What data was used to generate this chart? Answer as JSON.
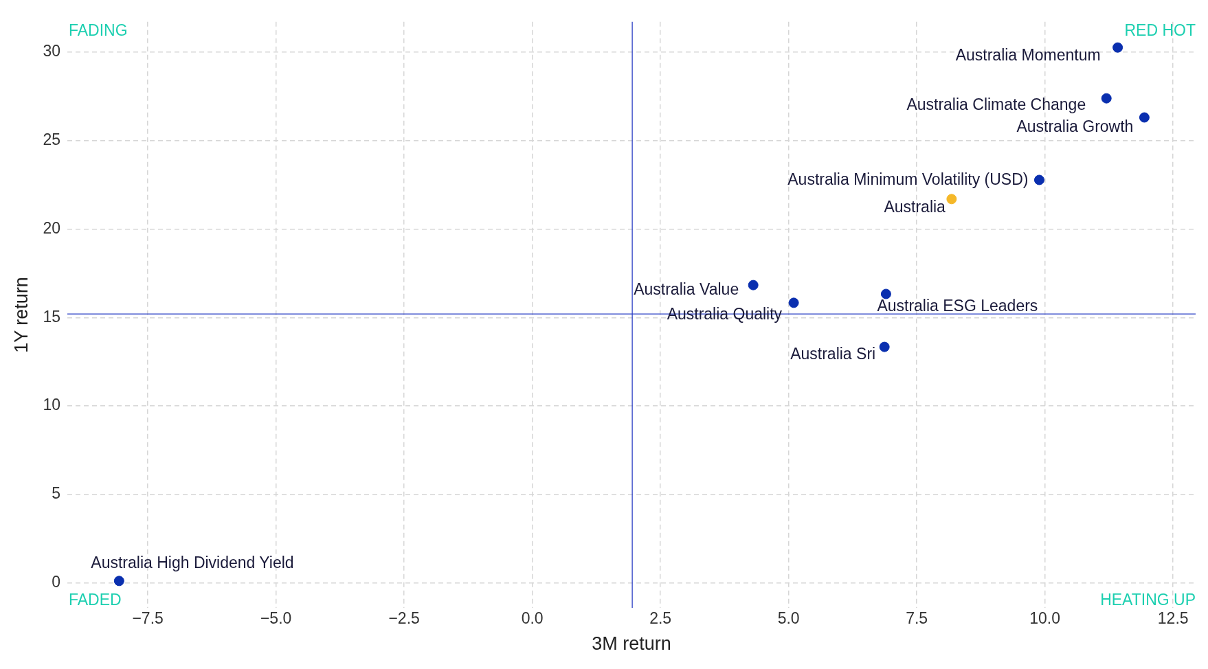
{
  "chart_data": {
    "type": "scatter",
    "xlabel": "3M return",
    "ylabel": "1Y return",
    "xlim": [
      -9.07,
      12.94
    ],
    "ylim": [
      -1.4,
      31.7
    ],
    "xticks": [
      {
        "value": -7.5,
        "label": "−7.5"
      },
      {
        "value": -5,
        "label": "−5.0"
      },
      {
        "value": -2.5,
        "label": "−2.5"
      },
      {
        "value": 0,
        "label": "0.0"
      },
      {
        "value": 2.5,
        "label": "2.5"
      },
      {
        "value": 5,
        "label": "5.0"
      },
      {
        "value": 7.5,
        "label": "7.5"
      },
      {
        "value": 10,
        "label": "10.0"
      },
      {
        "value": 12.5,
        "label": "12.5"
      }
    ],
    "yticks": [
      0,
      5,
      10,
      15,
      20,
      25,
      30
    ],
    "grid": true,
    "legend": false,
    "marker": "circle",
    "ref_lines": [
      {
        "axis": "x",
        "value": 1.95,
        "color": "#2b3fc4"
      },
      {
        "axis": "y",
        "value": 15.2,
        "color": "#2b3fc4"
      }
    ],
    "annotations": [
      "FADING",
      "RED HOT",
      "FADED",
      "HEATING UP"
    ],
    "series": [
      {
        "name": "Australia Momentum",
        "color": "#0a2faf",
        "x": [
          11.42
        ],
        "values": [
          30.25
        ]
      },
      {
        "name": "Australia Climate Change",
        "color": "#0a2faf",
        "x": [
          11.2
        ],
        "values": [
          27.38
        ]
      },
      {
        "name": "Australia Growth",
        "color": "#0a2faf",
        "x": [
          11.94
        ],
        "values": [
          26.3
        ]
      },
      {
        "name": "Australia Minimum Volatility (USD)",
        "color": "#0a2faf",
        "x": [
          9.89
        ],
        "values": [
          22.77
        ]
      },
      {
        "name": "Australia",
        "color": "#f5b829",
        "x": [
          8.18
        ],
        "values": [
          21.69
        ]
      },
      {
        "name": "Australia Value",
        "color": "#0a2faf",
        "x": [
          4.31
        ],
        "values": [
          16.83
        ]
      },
      {
        "name": "Australia Quality",
        "color": "#0a2faf",
        "x": [
          5.1
        ],
        "values": [
          15.83
        ]
      },
      {
        "name": "Australia ESG Leaders",
        "color": "#0a2faf",
        "x": [
          6.9
        ],
        "values": [
          16.33
        ]
      },
      {
        "name": "Australia Sri",
        "color": "#0a2faf",
        "x": [
          6.87
        ],
        "values": [
          13.34
        ]
      },
      {
        "name": "Australia High Dividend Yield",
        "color": "#0a2faf",
        "x": [
          -8.06
        ],
        "values": [
          0.12
        ]
      }
    ]
  }
}
